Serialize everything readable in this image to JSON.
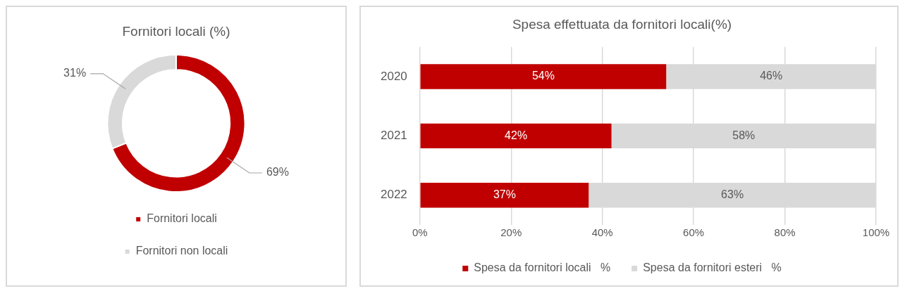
{
  "chart_data": [
    {
      "type": "donut",
      "title": "Fornitori locali (%)",
      "categories": [
        "Fornitori locali",
        "Fornitori non locali"
      ],
      "values": [
        69,
        31
      ],
      "colors": [
        "#c00000",
        "#d9d9d9"
      ],
      "value_labels": [
        "69%",
        "31%"
      ],
      "legend": "bottom"
    },
    {
      "type": "bar",
      "orientation": "horizontal",
      "stacked": true,
      "title": "Spesa effettuata da fornitori locali(%)",
      "categories": [
        "2020",
        "2021",
        "2022"
      ],
      "series": [
        {
          "name": "Spesa da fornitori locali   %",
          "color": "#c00000",
          "values": [
            54,
            42,
            37
          ],
          "value_labels": [
            "54%",
            "42%",
            "37%"
          ]
        },
        {
          "name": "Spesa da fornitori esteri   %",
          "color": "#d9d9d9",
          "values": [
            46,
            58,
            63
          ],
          "value_labels": [
            "46%",
            "58%",
            "63%"
          ]
        }
      ],
      "xlim": [
        0,
        100
      ],
      "xticks": [
        {
          "value": 0,
          "label": "0%"
        },
        {
          "value": 20,
          "label": "20%"
        },
        {
          "value": 40,
          "label": "40%"
        },
        {
          "value": 60,
          "label": "60%"
        },
        {
          "value": 80,
          "label": "80%"
        },
        {
          "value": 100,
          "label": "100%"
        }
      ],
      "grid": "x",
      "legend": "bottom"
    }
  ]
}
